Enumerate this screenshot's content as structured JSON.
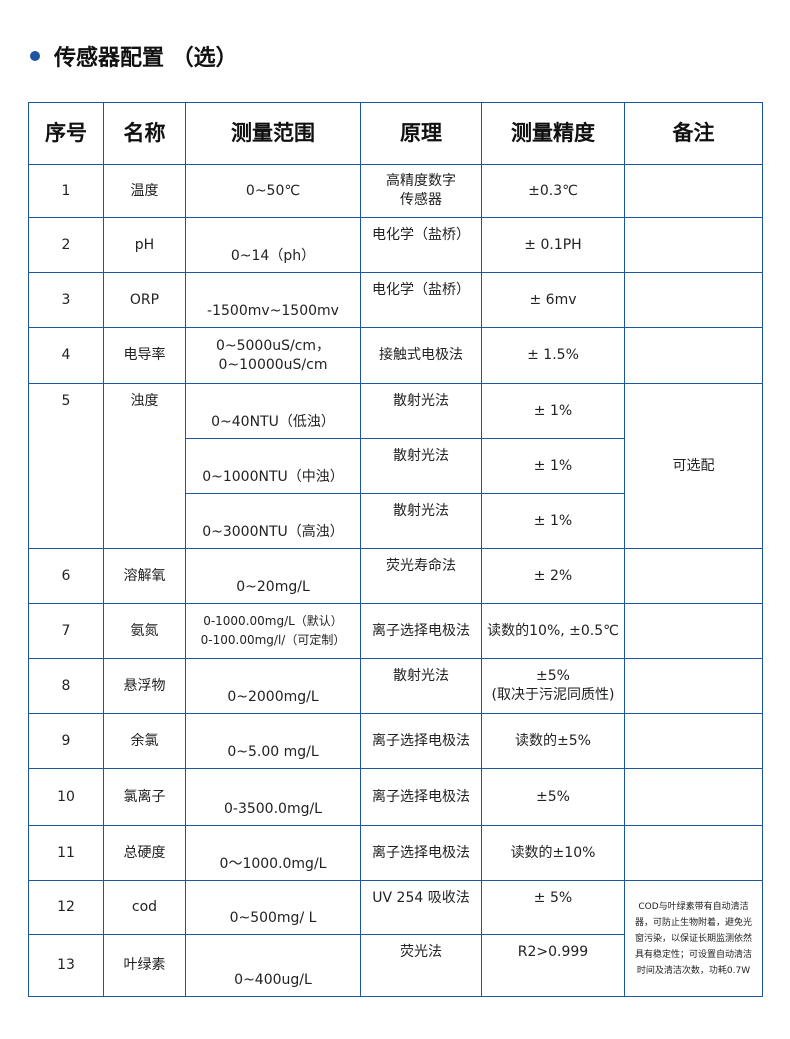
{
  "title": "传感器配置 （选）",
  "headers": [
    "序号",
    "名称",
    "测量范围",
    "原理",
    "测量精度",
    "备注"
  ],
  "rows": [
    {
      "no": "1",
      "name": "温度",
      "range": "0~50℃",
      "principle": "高精度数字\n传感器",
      "precision": "±0.3℃"
    },
    {
      "no": "2",
      "name": "pH",
      "range": "0~14（ph）",
      "principle": "电化学（盐桥）",
      "precision": "± 0.1PH"
    },
    {
      "no": "3",
      "name": "ORP",
      "range": "-1500mv~1500mv",
      "principle": "电化学（盐桥）",
      "precision": "± 6mv"
    },
    {
      "no": "4",
      "name": "电导率",
      "range": "0~5000uS/cm，\n0~10000uS/cm",
      "principle": "接触式电极法",
      "precision": "± 1.5%"
    },
    {
      "no": "5",
      "name": "浊度",
      "sub": [
        {
          "range": "0~40NTU（低浊）",
          "principle": "散射光法",
          "precision": "± 1%"
        },
        {
          "range": "0~1000NTU（中浊）",
          "principle": "散射光法",
          "precision": "± 1%"
        },
        {
          "range": "0~3000NTU（高浊）",
          "principle": "散射光法",
          "precision": "± 1%"
        }
      ],
      "note": "可选配"
    },
    {
      "no": "6",
      "name": "溶解氧",
      "range": "0~20mg/L",
      "principle": "荧光寿命法",
      "precision": "± 2%"
    },
    {
      "no": "7",
      "name": "氨氮",
      "range": "0-1000.00mg/L（默认）\n0-100.00mg/l/（可定制）",
      "principle": "离子选择电极法",
      "precision": "读数的10%, ±0.5℃"
    },
    {
      "no": "8",
      "name": "悬浮物",
      "range": "0~2000mg/L",
      "principle": "散射光法",
      "precision": "±5%\n(取决于污泥同质性)"
    },
    {
      "no": "9",
      "name": "余氯",
      "range": "0~5.00 mg/L",
      "principle": "离子选择电极法",
      "precision": "读数的±5%"
    },
    {
      "no": "10",
      "name": "氯离子",
      "range": "0-3500.0mg/L",
      "principle": "离子选择电极法",
      "precision": "±5%"
    },
    {
      "no": "11",
      "name": "总硬度",
      "range": "0～1000.0mg/L",
      "principle": "离子选择电极法",
      "precision": "读数的±10%"
    },
    {
      "no": "12",
      "name": "cod",
      "range": "0~500mg/ L",
      "principle": "UV 254 吸收法",
      "precision": "± 5%"
    },
    {
      "no": "13",
      "name": "叶绿素",
      "range": "0~400ug/L",
      "principle": "荧光法",
      "precision": "R2>0.999"
    }
  ],
  "note_cod": "COD与叶绿素带有自动清洁器，可防止生物附着，避免光窗污染，以保证长期监测依然具有稳定性；可设置自动清洁时间及清洁次数，功耗0.7W"
}
